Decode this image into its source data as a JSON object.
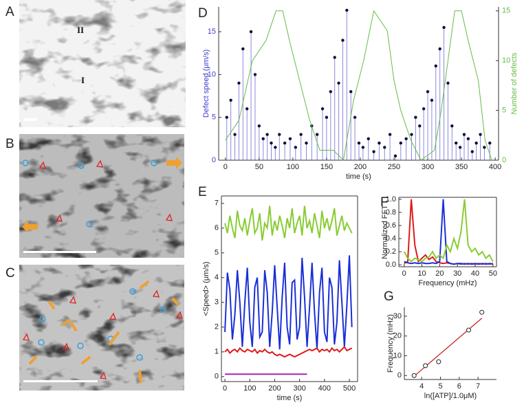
{
  "panels": {
    "letters": [
      "A",
      "B",
      "C",
      "D",
      "E",
      "F",
      "G"
    ],
    "image_labels": [
      "II",
      "I"
    ]
  },
  "chart_data": [
    {
      "type": "stem",
      "xlabel": "time (s)",
      "ylabel": "Defect speed (μm/s)",
      "y2label": "Number of defects",
      "xlim": [
        -10,
        405
      ],
      "xticks": [
        0,
        50,
        100,
        150,
        200,
        250,
        300,
        350,
        400
      ],
      "ylim": [
        0,
        17.9
      ],
      "yticks": [
        0,
        5,
        10,
        15
      ],
      "y2lim": [
        0,
        15.4
      ],
      "y2ticks": [
        0,
        5,
        10,
        15
      ],
      "series": [
        {
          "color": "#3a3acc",
          "x": [
            2,
            8,
            14,
            20,
            26,
            32,
            38,
            44,
            50,
            56,
            62,
            68,
            74,
            80,
            88,
            96,
            104,
            112,
            120,
            128,
            136,
            144,
            150,
            156,
            162,
            168,
            174,
            180,
            186,
            192,
            198,
            204,
            212,
            220,
            228,
            236,
            244,
            252,
            260,
            268,
            276,
            282,
            288,
            294,
            300,
            306,
            312,
            318,
            324,
            330,
            336,
            342,
            348,
            354,
            360,
            366,
            372,
            378,
            384,
            392
          ],
          "values": [
            5,
            7,
            3,
            9,
            13,
            6,
            15,
            10,
            4,
            2.5,
            3,
            2,
            1.5,
            3,
            2,
            2.5,
            1.5,
            3,
            2,
            4,
            3,
            6,
            5,
            8,
            12,
            9,
            14,
            17.5,
            8,
            5,
            2,
            1.5,
            2.5,
            1,
            2,
            1.5,
            3,
            0.5,
            2,
            2.5,
            3,
            5,
            4,
            6,
            8,
            7,
            11,
            13,
            15.5,
            9,
            4,
            2,
            1.5,
            3,
            2.5,
            1,
            2,
            3,
            1.5,
            2
          ]
        },
        {
          "color": "#66bb44",
          "axis": "y2",
          "x": [
            0,
            20,
            40,
            60,
            75,
            85,
            95,
            110,
            125,
            140,
            160,
            175,
            190,
            205,
            220,
            240,
            250,
            260,
            275,
            290,
            310,
            320,
            330,
            340,
            350,
            360,
            375,
            385,
            395
          ],
          "values": [
            2,
            4,
            10,
            12,
            15,
            15,
            12,
            8,
            4,
            1,
            1,
            0,
            6,
            10,
            15,
            13,
            8,
            5,
            2,
            0,
            1,
            5,
            10,
            15,
            15,
            12,
            8,
            2,
            0
          ]
        }
      ]
    },
    {
      "type": "line",
      "xlabel": "time (s)",
      "ylabel": "<Speed> (μm/s)",
      "xlim": [
        -14,
        533
      ],
      "xticks": [
        0,
        100,
        200,
        300,
        400,
        500
      ],
      "ylim": [
        -0.2,
        7.3
      ],
      "yticks": [
        0,
        1,
        2,
        3,
        4,
        5,
        6,
        7
      ],
      "x": [
        0,
        10,
        20,
        30,
        40,
        50,
        60,
        70,
        80,
        90,
        100,
        110,
        120,
        130,
        140,
        150,
        160,
        170,
        180,
        190,
        200,
        210,
        220,
        230,
        240,
        250,
        260,
        270,
        280,
        290,
        300,
        310,
        320,
        330,
        340,
        350,
        360,
        370,
        380,
        390,
        400,
        410,
        420,
        430,
        440,
        450,
        460,
        470,
        480,
        490,
        500,
        510
      ],
      "series": [
        {
          "color": "#88cc33",
          "values": [
            6.2,
            5.8,
            6.5,
            6.0,
            5.6,
            6.7,
            6.1,
            5.9,
            6.4,
            5.7,
            6.3,
            6.8,
            5.8,
            6.0,
            6.6,
            5.5,
            6.2,
            6.0,
            6.9,
            5.7,
            6.3,
            5.9,
            6.5,
            6.1,
            5.6,
            6.4,
            6.0,
            6.8,
            5.8,
            6.2,
            6.5,
            5.7,
            6.9,
            6.0,
            6.3,
            5.8,
            6.6,
            6.1,
            5.6,
            6.7,
            6.0,
            6.4,
            5.9,
            6.3,
            6.8,
            5.7,
            6.1,
            6.5,
            5.9,
            6.2,
            6.0,
            5.8
          ]
        },
        {
          "color": "#1a2fd6",
          "values": [
            1.8,
            4.2,
            3.5,
            1.5,
            2.5,
            4.3,
            3.0,
            1.2,
            3.0,
            4.4,
            2.2,
            1.2,
            3.6,
            4.0,
            1.6,
            1.8,
            4.3,
            3.4,
            1.2,
            2.6,
            4.5,
            2.8,
            1.1,
            3.2,
            4.6,
            2.0,
            1.3,
            3.8,
            3.9,
            1.5,
            2.0,
            4.8,
            3.2,
            1.2,
            2.8,
            4.6,
            2.6,
            1.1,
            3.4,
            4.4,
            1.8,
            1.4,
            4.0,
            3.6,
            1.3,
            2.2,
            4.7,
            3.0,
            1.2,
            2.9,
            4.9,
            2.0
          ]
        },
        {
          "color": "#dd1a1a",
          "values": [
            1.0,
            1.1,
            0.95,
            1.05,
            1.1,
            1.0,
            1.15,
            1.05,
            1.0,
            1.1,
            1.05,
            1.0,
            1.1,
            0.95,
            1.05,
            1.0,
            1.1,
            1.0,
            0.95,
            1.0,
            0.9,
            0.85,
            0.9,
            0.85,
            0.8,
            0.85,
            0.9,
            0.85,
            0.8,
            0.85,
            0.9,
            0.95,
            1.0,
            1.05,
            1.1,
            1.05,
            1.1,
            1.15,
            1.0,
            1.1,
            1.05,
            1.1,
            1.0,
            1.15,
            1.05,
            1.1,
            1.0,
            1.1,
            1.2,
            1.05,
            1.1,
            1.15
          ]
        },
        {
          "color": "#aa22aa",
          "values": [
            0.1,
            0.1,
            0.1,
            0.1,
            0.1,
            0.1,
            0.1,
            0.1,
            0.1,
            0.1,
            0.1,
            0.1,
            0.1,
            0.1,
            0.1,
            0.1,
            0.1,
            0.1,
            0.1,
            0.1,
            0.1,
            0.1,
            0.1,
            0.1,
            0.1,
            0.1,
            0.1,
            0.1,
            0.1,
            0.1,
            0.1,
            0.1,
            0.1,
            0.1,
            null,
            null,
            null,
            null,
            null,
            null,
            null,
            null,
            null,
            null,
            null,
            null,
            null,
            null,
            null,
            null,
            null,
            null
          ]
        }
      ]
    },
    {
      "type": "line",
      "xlabel": "Frequency (mHz)",
      "ylabel": "Normalized FFT",
      "xlim": [
        -3,
        52
      ],
      "xticks": [
        0,
        10,
        20,
        30,
        40,
        50
      ],
      "ylim": [
        -0.03,
        1.03
      ],
      "yticks": [
        {
          "value": 0,
          "label": "0.0"
        },
        0.2,
        0.4,
        0.6,
        0.8,
        {
          "value": 1,
          "label": "1.0"
        }
      ],
      "x": [
        0,
        2,
        4,
        6,
        8,
        10,
        12,
        14,
        16,
        18,
        20,
        22,
        24,
        26,
        28,
        30,
        32,
        34,
        36,
        38,
        40,
        42,
        44,
        46,
        48,
        50
      ],
      "series": [
        {
          "color": "#dd1a1a",
          "values": [
            0.02,
            0.05,
            1.0,
            0.3,
            0.05,
            0.1,
            0.15,
            0.08,
            0.12,
            0.05,
            0.03,
            0.02,
            0.03,
            0.02,
            0.01,
            0.02,
            0.01,
            0.02,
            0.01,
            0.02,
            0.01,
            0.02,
            0.01,
            0.02,
            0.01,
            0.02
          ]
        },
        {
          "color": "#1a2fd6",
          "values": [
            0.05,
            0.03,
            0.02,
            0.03,
            0.02,
            0.03,
            0.02,
            0.02,
            0.03,
            0.02,
            0.05,
            1.0,
            0.05,
            0.02,
            0.01,
            0.02,
            0.02,
            0.01,
            0.02,
            0.01,
            0.02,
            0.01,
            0.02,
            0.01,
            0.02,
            0.01
          ]
        },
        {
          "color": "#88cc33",
          "values": [
            0.2,
            0.1,
            0.05,
            0.1,
            0.08,
            0.05,
            0.1,
            0.12,
            0.2,
            0.1,
            0.15,
            0.1,
            0.3,
            0.2,
            0.4,
            0.25,
            0.5,
            1.0,
            0.3,
            0.2,
            0.25,
            0.15,
            0.2,
            0.1,
            0.15,
            0.05
          ]
        }
      ]
    },
    {
      "type": "scatter",
      "xlabel": "ln([ATP]/1.0μM)",
      "ylabel": "Frequency (mHz)",
      "xlim": [
        3.08,
        7.98
      ],
      "xticks": [
        4,
        5,
        6,
        7
      ],
      "ylim": [
        -2,
        34.5
      ],
      "yticks": [
        0,
        10,
        20,
        30
      ],
      "x": [
        3.6,
        4.2,
        4.9,
        6.5,
        7.2
      ],
      "values": [
        0,
        5,
        7,
        23,
        32
      ],
      "color": "#222222",
      "fit": {
        "x": [
          3.7,
          7.2
        ],
        "values": [
          0.5,
          29
        ],
        "color": "#cc2222"
      }
    }
  ]
}
